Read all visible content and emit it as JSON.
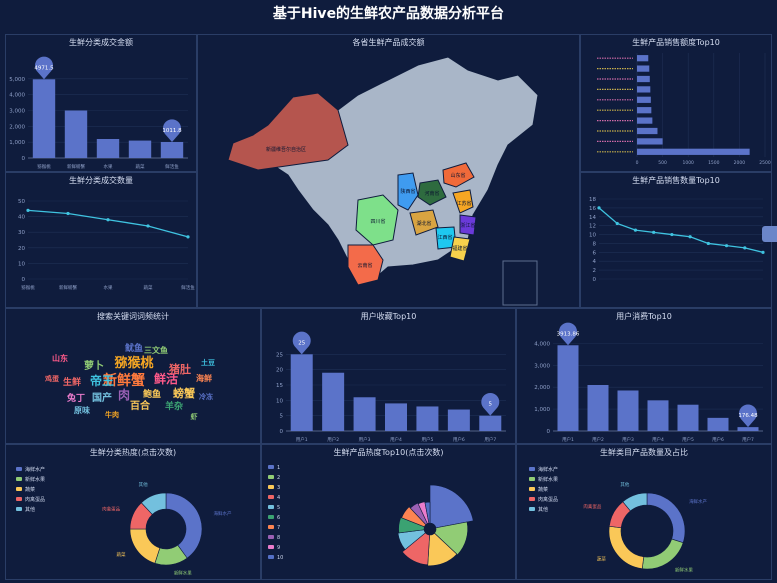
{
  "page": {
    "title": "基于Hive的生鲜农产品数据分析平台"
  },
  "colors": {
    "bar": "#5b73c9",
    "line": "#3fc3e0",
    "axis": "#8fa0c8",
    "grid": "#1f2f55"
  },
  "panels": {
    "p1": {
      "title": "生鲜分类成交金额"
    },
    "p2": {
      "title": "生鲜分类成交数量"
    },
    "p3": {
      "title": "各省生鲜产品成交额"
    },
    "p4": {
      "title": "生鲜产品销售额度Top10"
    },
    "p5": {
      "title": "生鲜产品销售数量Top10"
    },
    "p6": {
      "title": "搜索关键词词频统计"
    },
    "p7": {
      "title": "用户收藏Top10"
    },
    "p8": {
      "title": "用户消费Top10"
    },
    "p9": {
      "title": "生鲜分类热度(点击次数)"
    },
    "p10": {
      "title": "生鲜产品热度Top10(点击次数)"
    },
    "p11": {
      "title": "生鲜类目产品数量及占比"
    }
  },
  "map": {
    "regions": [
      {
        "name": "新疆维吾尔自治区",
        "color": "#b5554e"
      },
      {
        "name": "四川省",
        "color": "#7ee08a"
      },
      {
        "name": "陕西省",
        "color": "#3f9bf0"
      },
      {
        "name": "河南省",
        "color": "#2e6b3f"
      },
      {
        "name": "山东省",
        "color": "#f06a3a"
      },
      {
        "name": "江苏省",
        "color": "#f5a623"
      },
      {
        "name": "浙江省",
        "color": "#6a3ad9"
      },
      {
        "name": "湖北省",
        "color": "#d9a441"
      },
      {
        "name": "江西省",
        "color": "#1ec8f0"
      },
      {
        "name": "福建省",
        "color": "#f7d14c"
      },
      {
        "name": "云南省",
        "color": "#f36b4a"
      }
    ]
  },
  "chart_data": [
    {
      "id": "p1",
      "type": "bar",
      "categories": [
        "猕猴桃",
        "新鲜螃蟹",
        "水果",
        "蔬菜",
        "鲜活鱼"
      ],
      "values": [
        4971.5,
        3000,
        1200,
        1100,
        1011.8
      ],
      "ylim": [
        0,
        6000
      ],
      "yticks": [
        "0",
        "1,000",
        "2,000",
        "3,000",
        "4,000",
        "5,000"
      ],
      "markers": [
        "4971.5",
        "1011.8"
      ]
    },
    {
      "id": "p2",
      "type": "line",
      "categories": [
        "猕猴桃",
        "新鲜螃蟹",
        "水果",
        "蔬菜",
        "鲜活鱼"
      ],
      "values": [
        44,
        42,
        38,
        34,
        27
      ],
      "ylim": [
        0,
        50
      ],
      "yticks": [
        "0",
        "10",
        "20",
        "30",
        "40",
        "50"
      ]
    },
    {
      "id": "p4",
      "type": "bar",
      "orientation": "horizontal",
      "categories": [
        "1",
        "2",
        "3",
        "4",
        "5",
        "6",
        "7",
        "8",
        "9",
        "10"
      ],
      "values": [
        2200,
        500,
        400,
        300,
        280,
        270,
        260,
        250,
        240,
        220
      ],
      "xlim": [
        0,
        2500
      ],
      "xticks": [
        "0",
        "500",
        "1000",
        "1500",
        "2000",
        "2500"
      ]
    },
    {
      "id": "p5",
      "type": "line",
      "categories": [
        "1",
        "2",
        "3",
        "4",
        "5",
        "6",
        "7",
        "8",
        "9",
        "10"
      ],
      "values": [
        16,
        12.5,
        11,
        10.5,
        10,
        9.5,
        8,
        7.5,
        7,
        6
      ],
      "ylim": [
        0,
        18
      ],
      "yticks": [
        "0",
        "2",
        "4",
        "6",
        "8",
        "10",
        "12",
        "14",
        "16",
        "18"
      ]
    },
    {
      "id": "p7",
      "type": "bar",
      "categories": [
        "用户1",
        "用户2",
        "用户3",
        "用户4",
        "用户5",
        "用户6",
        "用户7"
      ],
      "values": [
        25,
        19,
        11,
        9,
        8,
        7,
        5
      ],
      "ylim": [
        0,
        30
      ],
      "yticks": [
        "0",
        "5",
        "10",
        "15",
        "20",
        "25"
      ],
      "markers": [
        "25",
        "5"
      ]
    },
    {
      "id": "p8",
      "type": "bar",
      "categories": [
        "用户1",
        "用户2",
        "用户3",
        "用户4",
        "用户5",
        "用户6",
        "用户7"
      ],
      "values": [
        3913.86,
        2100,
        1850,
        1400,
        1200,
        600,
        176.48
      ],
      "ylim": [
        0,
        4200
      ],
      "yticks": [
        "0",
        "1,000",
        "2,000",
        "3,000",
        "4,000"
      ],
      "markers": [
        "3913.86",
        "176.48"
      ]
    },
    {
      "id": "p9",
      "type": "pie",
      "legend": [
        "海鲜水产",
        "新鲜水果",
        "蔬菜",
        "肉禽蛋品",
        "其他"
      ],
      "values": [
        40,
        15,
        20,
        13,
        12
      ],
      "colors": [
        "#5b73c9",
        "#91cc75",
        "#fac858",
        "#ee6666",
        "#73c0de"
      ],
      "labels": [
        "海鲜水产",
        "新鲜水果",
        "蔬菜",
        "肉禽蛋品",
        "其他"
      ]
    },
    {
      "id": "p10",
      "type": "pie",
      "legend": [
        "1",
        "2",
        "3",
        "4",
        "5",
        "6",
        "7",
        "8",
        "9",
        "10"
      ],
      "values": [
        22,
        15,
        14,
        13,
        9,
        8,
        7,
        5,
        4,
        3
      ],
      "colors": [
        "#5b73c9",
        "#91cc75",
        "#fac858",
        "#ee6666",
        "#73c0de",
        "#3ba272",
        "#fc8452",
        "#9a60b4",
        "#ea7ccc",
        "#5470c6"
      ]
    },
    {
      "id": "p11",
      "type": "pie",
      "legend": [
        "海鲜水产",
        "新鲜水果",
        "蔬菜",
        "肉禽蛋品",
        "其他"
      ],
      "values": [
        30,
        22,
        25,
        12,
        11
      ],
      "colors": [
        "#5b73c9",
        "#91cc75",
        "#fac858",
        "#ee6666",
        "#73c0de"
      ],
      "labels": [
        "海鲜水产",
        "新鲜水果",
        "蔬菜",
        "肉禽蛋品",
        "其他"
      ]
    }
  ],
  "wordcloud": [
    {
      "w": "猕猴桃",
      "c": "#f5a623",
      "s": 13
    },
    {
      "w": "新鲜蟹",
      "c": "#ff7a3d",
      "s": 14
    },
    {
      "w": "鲜活",
      "c": "#ff5a8a",
      "s": 12
    },
    {
      "w": "帝王",
      "c": "#3fc3e0",
      "s": 12
    },
    {
      "w": "螃蟹",
      "c": "#fac858",
      "s": 11
    },
    {
      "w": "猪肚",
      "c": "#ee6666",
      "s": 11
    },
    {
      "w": "萝卜",
      "c": "#91cc75",
      "s": 10
    },
    {
      "w": "鱿鱼",
      "c": "#5b73c9",
      "s": 9
    },
    {
      "w": "国产",
      "c": "#73c0de",
      "s": 10
    },
    {
      "w": "百合",
      "c": "#fac858",
      "s": 10
    },
    {
      "w": "生鲜",
      "c": "#ee6666",
      "s": 9
    },
    {
      "w": "肉",
      "c": "#9a60b4",
      "s": 12
    },
    {
      "w": "羊杂",
      "c": "#3ba272",
      "s": 9
    },
    {
      "w": "海鲜",
      "c": "#fc8452",
      "s": 8
    },
    {
      "w": "兔丁",
      "c": "#ea7ccc",
      "s": 9
    },
    {
      "w": "原味",
      "c": "#73c0de",
      "s": 8
    },
    {
      "w": "鲍鱼",
      "c": "#fac858",
      "s": 9
    },
    {
      "w": "三文鱼",
      "c": "#91cc75",
      "s": 8
    },
    {
      "w": "山东",
      "c": "#ff5a8a",
      "s": 8
    },
    {
      "w": "冷冻",
      "c": "#5b73c9",
      "s": 7
    },
    {
      "w": "土豆",
      "c": "#3fc3e0",
      "s": 7
    },
    {
      "w": "牛肉",
      "c": "#f5a623",
      "s": 7
    },
    {
      "w": "鸡蛋",
      "c": "#ee6666",
      "s": 7
    },
    {
      "w": "虾",
      "c": "#91cc75",
      "s": 7
    }
  ]
}
